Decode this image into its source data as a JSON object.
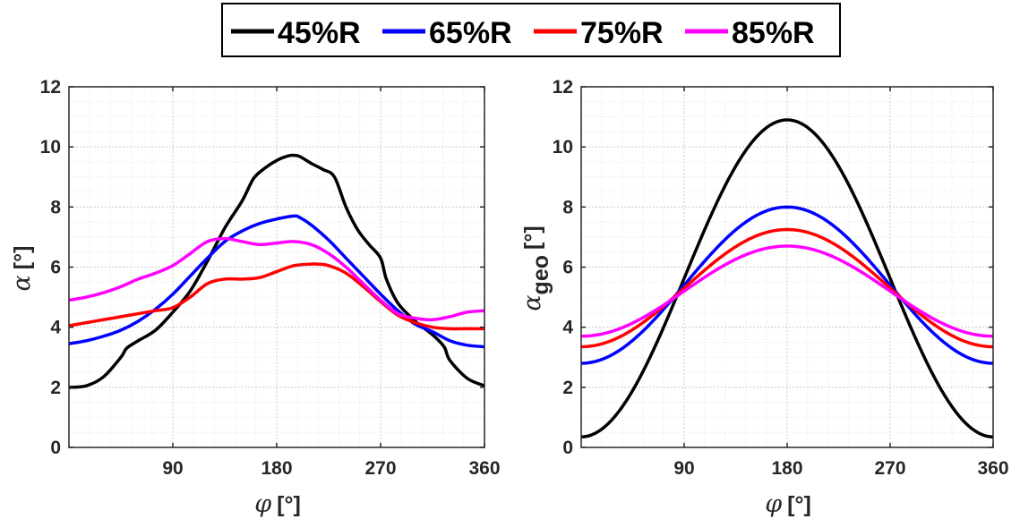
{
  "legend": {
    "entries": [
      {
        "label": "45%R",
        "color": "#000000"
      },
      {
        "label": "65%R",
        "color": "#0000FF"
      },
      {
        "label": "75%R",
        "color": "#FF0000"
      },
      {
        "label": "85%R",
        "color": "#FF00FF"
      }
    ],
    "placement": "top-center, outside axes, horizontal"
  },
  "chart_data": [
    {
      "type": "line",
      "xlabel": {
        "symbol": "φ",
        "unit": "[°]"
      },
      "ylabel": {
        "symbol": "α",
        "unit": "[°]"
      },
      "xlim": [
        0,
        360
      ],
      "ylim": [
        0,
        12
      ],
      "xticks": [
        90,
        180,
        270,
        360
      ],
      "yticks": [
        0,
        2,
        4,
        6,
        8,
        10,
        12
      ],
      "grid": "major and minor, dotted",
      "series": [
        {
          "name": "45%R",
          "color": "#000000",
          "x": [
            0,
            15,
            30,
            45,
            50,
            60,
            75,
            90,
            105,
            120,
            135,
            150,
            160,
            170,
            180,
            190,
            195,
            200,
            210,
            220,
            230,
            240,
            250,
            260,
            270,
            275,
            285,
            300,
            315,
            325,
            330,
            345,
            360
          ],
          "y": [
            2.0,
            2.05,
            2.35,
            3.0,
            3.3,
            3.55,
            3.9,
            4.5,
            5.2,
            6.2,
            7.3,
            8.2,
            8.95,
            9.3,
            9.55,
            9.7,
            9.72,
            9.68,
            9.45,
            9.25,
            9.0,
            8.0,
            7.25,
            6.75,
            6.3,
            5.6,
            4.8,
            4.2,
            3.75,
            3.35,
            2.9,
            2.3,
            2.05
          ]
        },
        {
          "name": "65%R",
          "color": "#0000FF",
          "x": [
            0,
            15,
            30,
            45,
            60,
            75,
            90,
            105,
            120,
            135,
            150,
            165,
            180,
            195,
            200,
            210,
            225,
            240,
            255,
            270,
            285,
            300,
            315,
            330,
            345,
            360
          ],
          "y": [
            3.45,
            3.55,
            3.7,
            3.9,
            4.2,
            4.6,
            5.1,
            5.7,
            6.3,
            6.85,
            7.2,
            7.45,
            7.6,
            7.7,
            7.65,
            7.4,
            6.9,
            6.3,
            5.7,
            5.1,
            4.55,
            4.1,
            3.85,
            3.55,
            3.4,
            3.35
          ]
        },
        {
          "name": "75%R",
          "color": "#FF0000",
          "x": [
            0,
            15,
            30,
            45,
            60,
            75,
            90,
            105,
            120,
            135,
            150,
            165,
            180,
            195,
            210,
            215,
            225,
            240,
            255,
            270,
            285,
            300,
            315,
            330,
            345,
            360
          ],
          "y": [
            4.05,
            4.15,
            4.25,
            4.35,
            4.45,
            4.55,
            4.65,
            5.0,
            5.45,
            5.6,
            5.6,
            5.65,
            5.85,
            6.05,
            6.1,
            6.1,
            6.05,
            5.8,
            5.35,
            4.85,
            4.4,
            4.15,
            4.0,
            3.95,
            3.95,
            3.95
          ]
        },
        {
          "name": "85%R",
          "color": "#FF00FF",
          "x": [
            0,
            15,
            30,
            45,
            60,
            75,
            90,
            105,
            120,
            135,
            150,
            165,
            180,
            195,
            210,
            225,
            240,
            255,
            270,
            285,
            300,
            315,
            330,
            345,
            360
          ],
          "y": [
            4.9,
            5.0,
            5.15,
            5.35,
            5.6,
            5.8,
            6.05,
            6.45,
            6.85,
            6.95,
            6.85,
            6.75,
            6.8,
            6.85,
            6.75,
            6.45,
            6.0,
            5.45,
            4.9,
            4.45,
            4.3,
            4.25,
            4.35,
            4.5,
            4.55
          ]
        }
      ]
    },
    {
      "type": "line",
      "xlabel": {
        "symbol": "φ",
        "unit": "[°]"
      },
      "ylabel": {
        "symbol": "α",
        "subscript": "geo",
        "unit": "[°]"
      },
      "xlim": [
        0,
        360
      ],
      "ylim": [
        0,
        12
      ],
      "xticks": [
        90,
        180,
        270,
        360
      ],
      "yticks": [
        0,
        2,
        4,
        6,
        8,
        10,
        12
      ],
      "grid": "major and minor, dotted",
      "series": [
        {
          "name": "45%R",
          "color": "#000000",
          "form": "cosine",
          "min": 0.35,
          "max": 10.9
        },
        {
          "name": "65%R",
          "color": "#0000FF",
          "form": "cosine",
          "min": 2.8,
          "max": 8.0
        },
        {
          "name": "75%R",
          "color": "#FF0000",
          "form": "cosine",
          "min": 3.35,
          "max": 7.25
        },
        {
          "name": "85%R",
          "color": "#FF00FF",
          "form": "cosine",
          "min": 3.7,
          "max": 6.7
        }
      ]
    }
  ]
}
